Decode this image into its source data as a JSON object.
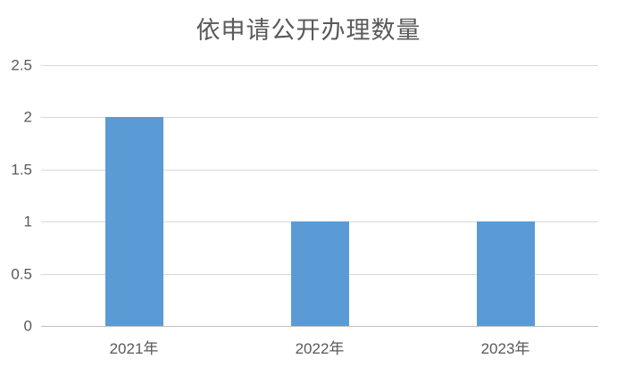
{
  "chart_data": {
    "type": "bar",
    "title": "依申请公开办理数量",
    "categories": [
      "2021年",
      "2022年",
      "2023年"
    ],
    "values": [
      2,
      1,
      1
    ],
    "xlabel": "",
    "ylabel": "",
    "ylim": [
      0,
      2.5
    ],
    "yticks": [
      {
        "value": 0,
        "label": "0"
      },
      {
        "value": 0.5,
        "label": "0.5"
      },
      {
        "value": 1,
        "label": "1"
      },
      {
        "value": 1.5,
        "label": "1.5"
      },
      {
        "value": 2,
        "label": "2"
      },
      {
        "value": 2.5,
        "label": "2.5"
      }
    ],
    "grid": true,
    "legend": "none",
    "colors": {
      "bar": "#5B9BD5",
      "gridline": "#D9D9D9",
      "axis_line": "#BFBFBF",
      "text": "#595959",
      "background": "#FFFFFF"
    }
  }
}
